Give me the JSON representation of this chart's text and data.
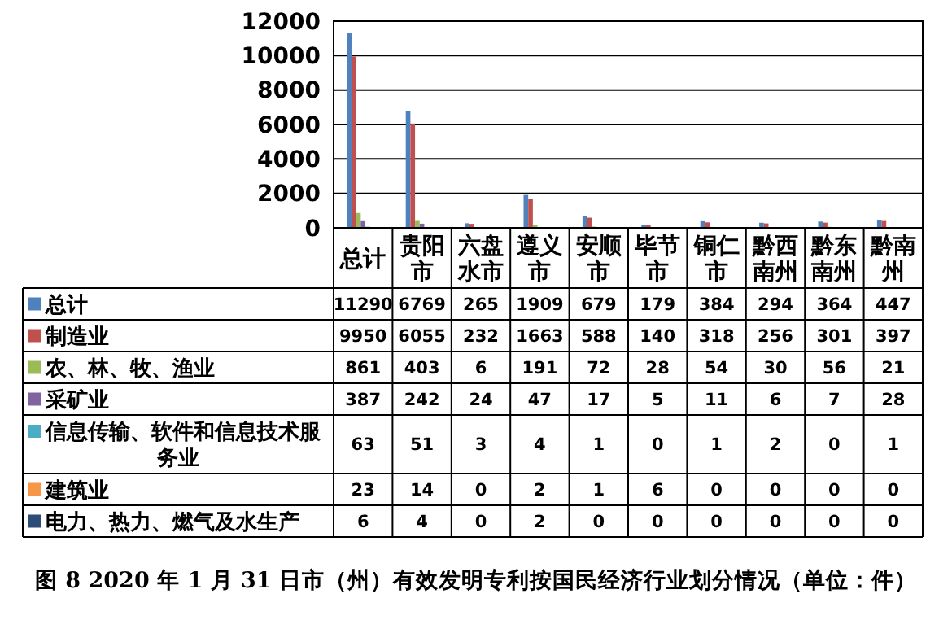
{
  "chart_data": {
    "type": "bar",
    "title": "图 8 2020 年 1 月 31 日市（州）有效发明专利按国民经济行业划分情况（单位：件）",
    "categories": [
      "总计",
      "贵阳市",
      "六盘水市",
      "遵义市",
      "安顺市",
      "毕节市",
      "铜仁市",
      "黔西南州",
      "黔东南州",
      "黔南州"
    ],
    "series": [
      {
        "name": "总计",
        "color": "#4f81bd",
        "values": [
          11290,
          6769,
          265,
          1909,
          679,
          179,
          384,
          294,
          364,
          447
        ]
      },
      {
        "name": "制造业",
        "color": "#c0504d",
        "values": [
          9950,
          6055,
          232,
          1663,
          588,
          140,
          318,
          256,
          301,
          397
        ]
      },
      {
        "name": "农、林、牧、渔业",
        "color": "#9bbb59",
        "values": [
          861,
          403,
          6,
          191,
          72,
          28,
          54,
          30,
          56,
          21
        ]
      },
      {
        "name": "采矿业",
        "color": "#8064a2",
        "values": [
          387,
          242,
          24,
          47,
          17,
          5,
          11,
          6,
          7,
          28
        ]
      },
      {
        "name": "信息传输、软件和信息技术服务业",
        "color": "#4bacc6",
        "values": [
          63,
          51,
          3,
          4,
          1,
          0,
          1,
          2,
          0,
          1
        ]
      },
      {
        "name": "建筑业",
        "color": "#f79646",
        "values": [
          23,
          14,
          0,
          2,
          1,
          6,
          0,
          0,
          0,
          0
        ]
      },
      {
        "name": "电力、热力、燃气及水生产",
        "color": "#2c4d75",
        "values": [
          6,
          4,
          0,
          2,
          0,
          0,
          0,
          0,
          0,
          0
        ]
      }
    ],
    "ylim": [
      0,
      12000
    ],
    "yticks": [
      0,
      2000,
      4000,
      6000,
      8000,
      10000,
      12000
    ],
    "grid": "y",
    "legend": "bottom",
    "data_labels": true
  }
}
